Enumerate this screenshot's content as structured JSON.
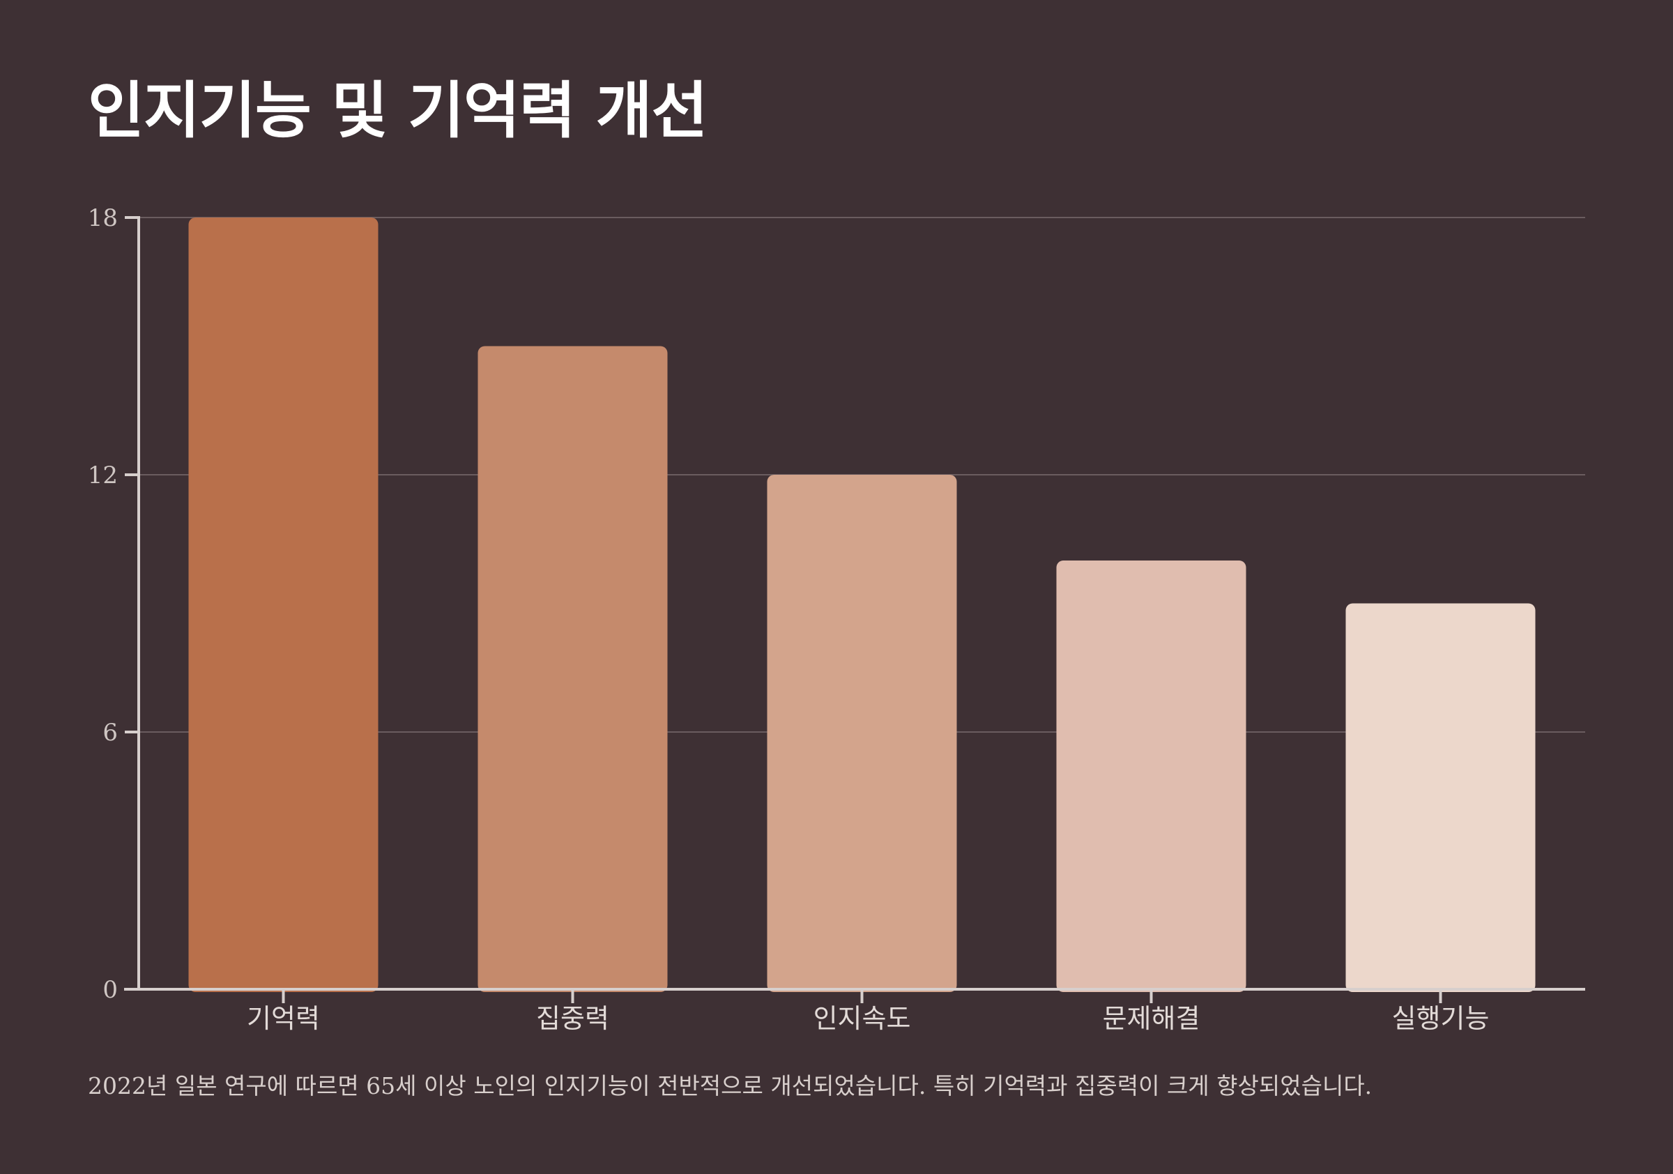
{
  "chart_data": {
    "type": "bar",
    "title": "인지기능 및 기억력 개선",
    "categories": [
      "기억력",
      "집중력",
      "인지속도",
      "문제해결",
      "실행기능"
    ],
    "values": [
      18,
      15,
      12,
      10,
      9
    ],
    "colors": [
      "#b9704b",
      "#c58a6c",
      "#d3a48c",
      "#e0bdaf",
      "#ecd7cb"
    ],
    "ylim": [
      0,
      18
    ],
    "yticks": [
      0,
      6,
      12,
      18
    ],
    "xlabel": "",
    "ylabel": "",
    "grid": true,
    "legend": "none",
    "note": "2022년 일본 연구에 따르면 65세 이상 노인의 인지기능이 전반적으로 개선되었습니다. 특히 기억력과 집중력이 크게 향상되었습니다."
  }
}
